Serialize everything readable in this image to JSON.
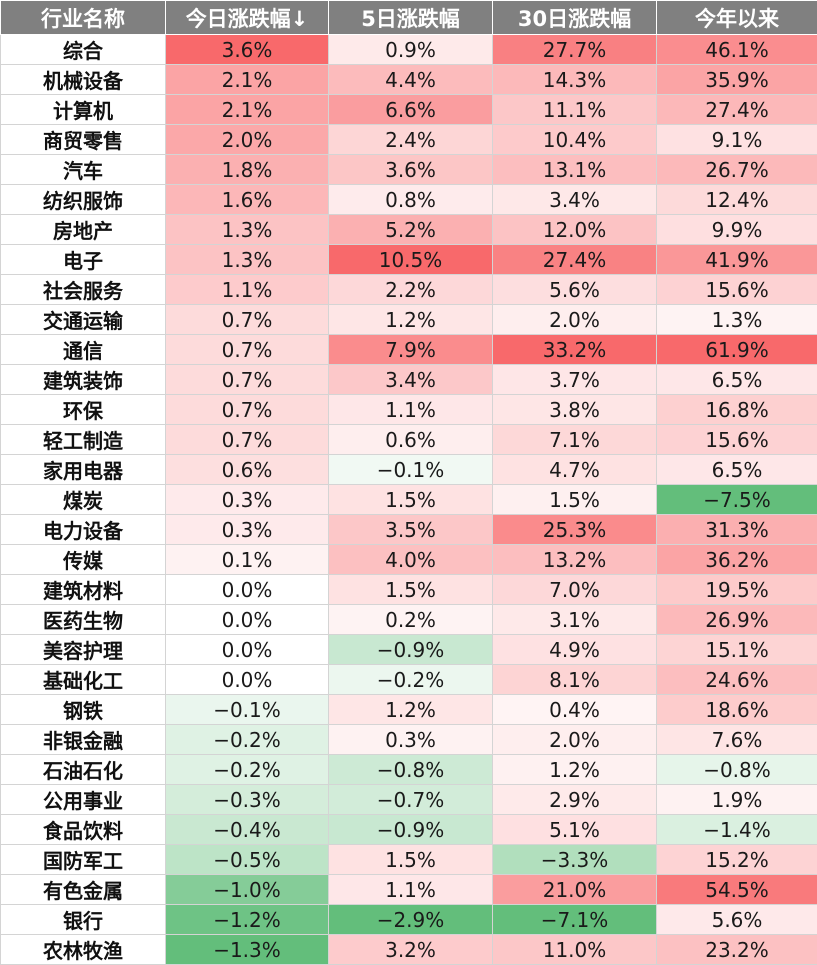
{
  "chart_data": {
    "type": "table",
    "columns": [
      "行业名称",
      "今日涨跌幅↓",
      "5日涨跌幅",
      "30日涨跌幅",
      "今年以来"
    ],
    "sort_column": "今日涨跌幅",
    "sort_order": "descending",
    "color_scale": {
      "positive": "#f8696b",
      "neutral": "#ffffff",
      "negative": "#63be7b"
    },
    "rows": [
      {
        "name": "综合",
        "values": [
          3.6,
          0.9,
          27.7,
          46.1
        ]
      },
      {
        "name": "机械设备",
        "values": [
          2.1,
          4.4,
          14.3,
          35.9
        ]
      },
      {
        "name": "计算机",
        "values": [
          2.1,
          6.6,
          11.1,
          27.4
        ]
      },
      {
        "name": "商贸零售",
        "values": [
          2.0,
          2.4,
          10.4,
          9.1
        ]
      },
      {
        "name": "汽车",
        "values": [
          1.8,
          3.6,
          13.1,
          26.7
        ]
      },
      {
        "name": "纺织服饰",
        "values": [
          1.6,
          0.8,
          3.4,
          12.4
        ]
      },
      {
        "name": "房地产",
        "values": [
          1.3,
          5.2,
          12.0,
          9.9
        ]
      },
      {
        "name": "电子",
        "values": [
          1.3,
          10.5,
          27.4,
          41.9
        ]
      },
      {
        "name": "社会服务",
        "values": [
          1.1,
          2.2,
          5.6,
          15.6
        ]
      },
      {
        "name": "交通运输",
        "values": [
          0.7,
          1.2,
          2.0,
          1.3
        ]
      },
      {
        "name": "通信",
        "values": [
          0.7,
          7.9,
          33.2,
          61.9
        ]
      },
      {
        "name": "建筑装饰",
        "values": [
          0.7,
          3.4,
          3.7,
          6.5
        ]
      },
      {
        "name": "环保",
        "values": [
          0.7,
          1.1,
          3.8,
          16.8
        ]
      },
      {
        "name": "轻工制造",
        "values": [
          0.7,
          0.6,
          7.1,
          15.6
        ]
      },
      {
        "name": "家用电器",
        "values": [
          0.6,
          -0.1,
          4.7,
          6.5
        ]
      },
      {
        "name": "煤炭",
        "values": [
          0.3,
          1.5,
          1.5,
          -7.5
        ]
      },
      {
        "name": "电力设备",
        "values": [
          0.3,
          3.5,
          25.3,
          31.3
        ]
      },
      {
        "name": "传媒",
        "values": [
          0.1,
          4.0,
          13.2,
          36.2
        ]
      },
      {
        "name": "建筑材料",
        "values": [
          0.0,
          1.5,
          7.0,
          19.5
        ]
      },
      {
        "name": "医药生物",
        "values": [
          0.0,
          0.2,
          3.1,
          26.9
        ]
      },
      {
        "name": "美容护理",
        "values": [
          0.0,
          -0.9,
          4.9,
          15.1
        ]
      },
      {
        "name": "基础化工",
        "values": [
          0.0,
          -0.2,
          8.1,
          24.6
        ]
      },
      {
        "name": "钢铁",
        "values": [
          -0.1,
          1.2,
          0.4,
          18.6
        ]
      },
      {
        "name": "非银金融",
        "values": [
          -0.2,
          0.3,
          2.0,
          7.6
        ]
      },
      {
        "name": "石油石化",
        "values": [
          -0.2,
          -0.8,
          1.2,
          -0.8
        ]
      },
      {
        "name": "公用事业",
        "values": [
          -0.3,
          -0.7,
          2.9,
          1.9
        ]
      },
      {
        "name": "食品饮料",
        "values": [
          -0.4,
          -0.9,
          5.1,
          -1.4
        ]
      },
      {
        "name": "国防军工",
        "values": [
          -0.5,
          1.5,
          -3.3,
          15.2
        ]
      },
      {
        "name": "有色金属",
        "values": [
          -1.0,
          1.1,
          21.0,
          54.5
        ]
      },
      {
        "name": "银行",
        "values": [
          -1.2,
          -2.9,
          -7.1,
          5.6
        ]
      },
      {
        "name": "农林牧渔",
        "values": [
          -1.3,
          3.2,
          11.0,
          23.2
        ]
      }
    ]
  }
}
